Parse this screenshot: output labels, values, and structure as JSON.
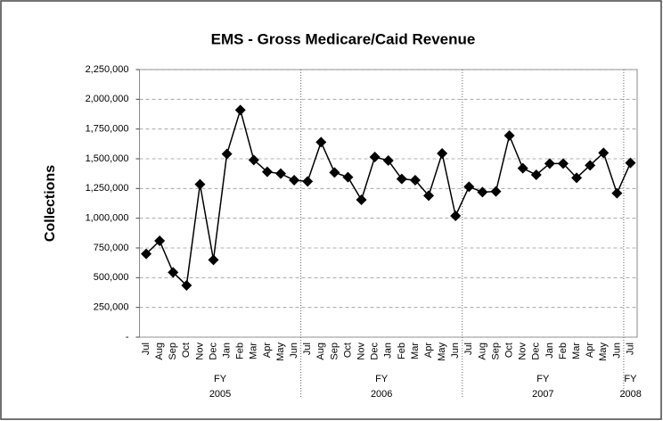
{
  "chart_data": {
    "type": "line",
    "title": "EMS - Gross Medicare/Caid Revenue",
    "y_label": "Collections",
    "groups": [
      {
        "label": "FY 2005",
        "categories": [
          "Jul",
          "Aug",
          "Sep",
          "Oct",
          "Nov",
          "Dec",
          "Jan",
          "Feb",
          "Mar",
          "Apr",
          "May",
          "Jun"
        ]
      },
      {
        "label": "FY 2006",
        "categories": [
          "Jul",
          "Aug",
          "Sep",
          "Oct",
          "Nov",
          "Dec",
          "Jan",
          "Feb",
          "Mar",
          "Apr",
          "May",
          "Jun"
        ]
      },
      {
        "label": "FY 2007",
        "categories": [
          "Jul",
          "Aug",
          "Sep",
          "Oct",
          "Nov",
          "Dec",
          "Jan",
          "Feb",
          "Mar",
          "Apr",
          "May",
          "Jun"
        ]
      },
      {
        "label": "FY 2008",
        "categories": [
          "Jul"
        ]
      }
    ],
    "series": [
      {
        "name": "Collections",
        "color": "#000000",
        "values": [
          700000,
          810000,
          545000,
          435000,
          1285000,
          650000,
          1540000,
          1910000,
          1490000,
          1390000,
          1375000,
          1320000,
          1310000,
          1640000,
          1385000,
          1345000,
          1155000,
          1515000,
          1485000,
          1330000,
          1320000,
          1190000,
          1545000,
          1020000,
          1265000,
          1220000,
          1225000,
          1695000,
          1420000,
          1365000,
          1460000,
          1460000,
          1340000,
          1445000,
          1550000,
          1210000,
          1465000
        ]
      }
    ],
    "ylim": [
      0,
      2250000
    ],
    "yticks": [
      {
        "value": 0,
        "label": "-"
      },
      {
        "value": 250000,
        "label": "250,000"
      },
      {
        "value": 500000,
        "label": "500,000"
      },
      {
        "value": 750000,
        "label": "750,000"
      },
      {
        "value": 1000000,
        "label": "1,000,000"
      },
      {
        "value": 1250000,
        "label": "1,250,000"
      },
      {
        "value": 1500000,
        "label": "1,500,000"
      },
      {
        "value": 1750000,
        "label": "1,750,000"
      },
      {
        "value": 2000000,
        "label": "2,000,000"
      },
      {
        "value": 2250000,
        "label": "2,250,000"
      }
    ],
    "grid": true
  }
}
